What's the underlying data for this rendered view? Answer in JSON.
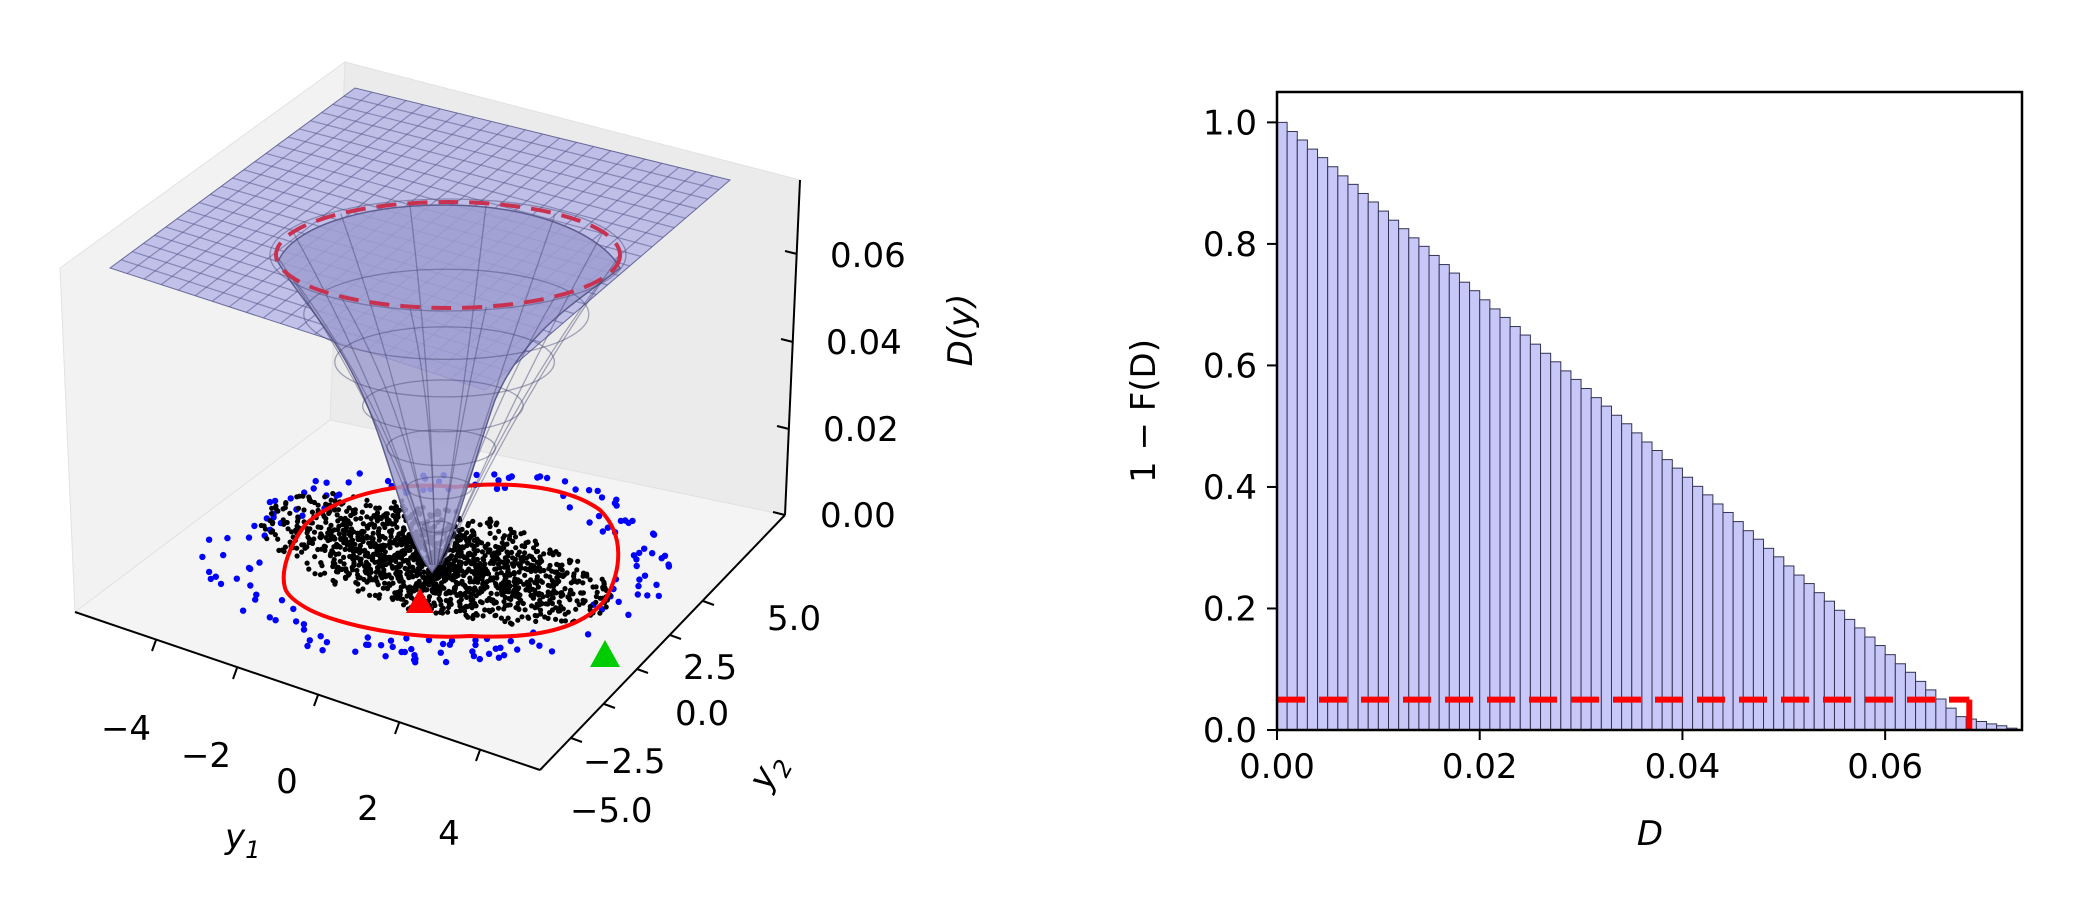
{
  "chart_data": [
    {
      "type": "surface3d",
      "zlabel": "D(y)",
      "xlabel_main": "y",
      "xlabel_sub": "1",
      "ylabel_main": "y",
      "ylabel_sub": "2",
      "x_ticks": [
        "−4",
        "−2",
        "0",
        "2",
        "4"
      ],
      "y_ticks": [
        "−5.0",
        "−2.5",
        "0.0",
        "2.5",
        "5.0"
      ],
      "z_ticks": [
        "0.00",
        "0.02",
        "0.04",
        "0.06"
      ],
      "xlim": [
        -5,
        5
      ],
      "ylim": [
        -6,
        6
      ],
      "zlim": [
        0,
        0.07
      ],
      "plateau_z": 0.07,
      "well_depth": 0.063,
      "level_contour_z": 0.068,
      "sample_points": {
        "black_count": 1500,
        "blue_count": 160
      },
      "markers": [
        {
          "name": "red-triangle",
          "color": "#ff0000",
          "x": 0,
          "y": -2.5
        },
        {
          "name": "green-triangle",
          "color": "#00cc00",
          "x": 4,
          "y": 1.5
        }
      ],
      "colors": {
        "surface": "#b3b3e6",
        "contour": "#ff0000",
        "dashed": "#c83250",
        "black_points": "#000000",
        "blue_points": "#0000ff"
      }
    },
    {
      "type": "bar",
      "xlabel": "D",
      "ylabel": "1 − F(D)",
      "xlim": [
        0,
        0.0735
      ],
      "ylim": [
        0,
        1.05
      ],
      "x_ticks": [
        "0.00",
        "0.02",
        "0.04",
        "0.06"
      ],
      "y_ticks": [
        "0.0",
        "0.2",
        "0.4",
        "0.6",
        "0.8",
        "1.0"
      ],
      "bin_width": 0.001,
      "values": [
        1.0,
        0.985,
        0.971,
        0.956,
        0.942,
        0.927,
        0.912,
        0.898,
        0.883,
        0.869,
        0.854,
        0.839,
        0.825,
        0.81,
        0.796,
        0.781,
        0.766,
        0.752,
        0.737,
        0.723,
        0.708,
        0.693,
        0.679,
        0.664,
        0.65,
        0.635,
        0.62,
        0.606,
        0.591,
        0.577,
        0.562,
        0.547,
        0.533,
        0.518,
        0.504,
        0.489,
        0.474,
        0.46,
        0.445,
        0.431,
        0.416,
        0.401,
        0.387,
        0.372,
        0.358,
        0.343,
        0.328,
        0.314,
        0.299,
        0.285,
        0.27,
        0.255,
        0.241,
        0.226,
        0.212,
        0.197,
        0.182,
        0.168,
        0.153,
        0.139,
        0.124,
        0.109,
        0.095,
        0.08,
        0.066,
        0.051,
        0.036,
        0.022,
        0.018,
        0.014,
        0.01,
        0.007,
        0.003
      ],
      "threshold_y": 0.05,
      "threshold_x": 0.0683,
      "colors": {
        "bar_fill": "#c8c8f8",
        "bar_edge": "#333355",
        "threshold": "#ff0000"
      }
    }
  ]
}
